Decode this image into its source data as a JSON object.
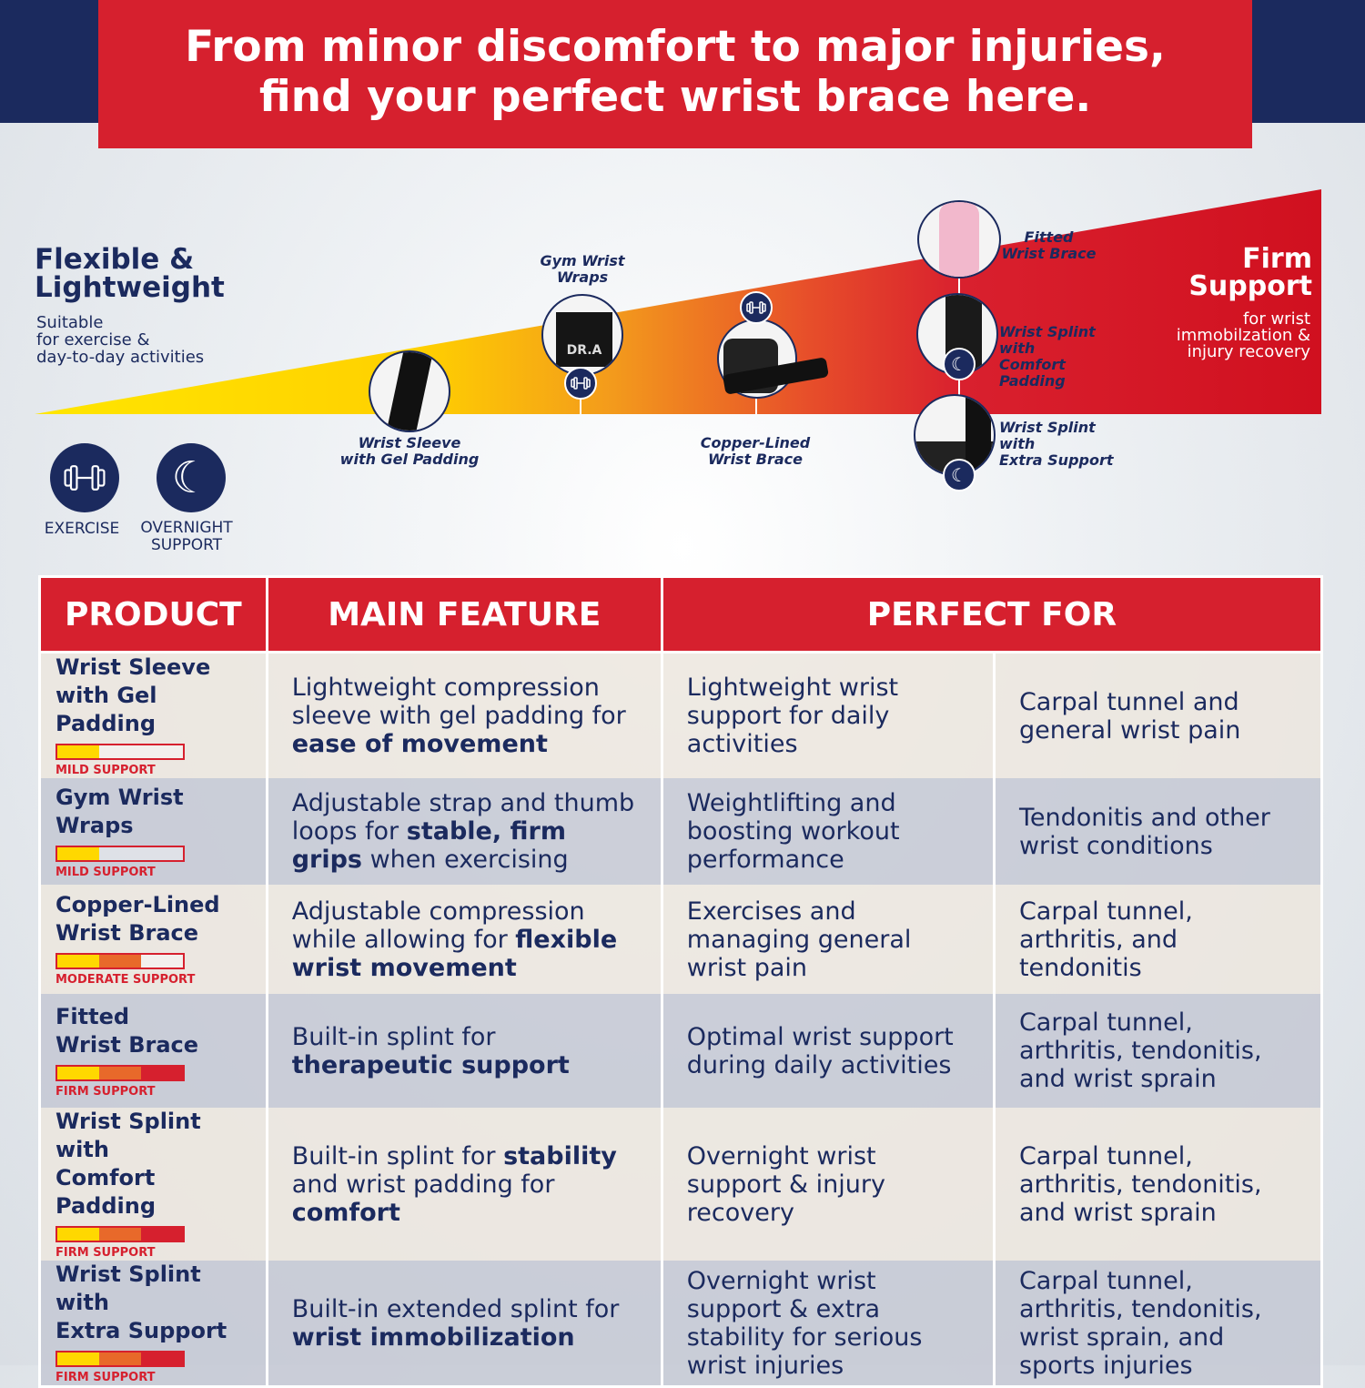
{
  "banner": {
    "line1": "From minor discomfort to major injuries,",
    "line2": "find your perfect wrist brace here."
  },
  "colors": {
    "navy": "#1b2a5e",
    "red": "#d6202e",
    "yellow": "#ffd800",
    "orange": "#e8692a"
  },
  "scale": {
    "left_title_1": "Flexible &",
    "left_title_2": "Lightweight",
    "left_sub_1": "Suitable",
    "left_sub_2": "for exercise &",
    "left_sub_3": "day-to-day activities",
    "right_title_1": "Firm",
    "right_title_2": "Support",
    "right_sub_1": "for wrist",
    "right_sub_2": "immobilzation &",
    "right_sub_3": "injury recovery",
    "products": [
      {
        "l1": "Wrist Sleeve",
        "l2": "with Gel Padding",
        "icon": "none"
      },
      {
        "l1": "Gym Wrist",
        "l2": "Wraps",
        "icon": "dumbbell-icon",
        "logo": "DR.A"
      },
      {
        "l1": "Copper-Lined",
        "l2": "Wrist Brace",
        "icon": "dumbbell-icon"
      },
      {
        "l1": "Fitted",
        "l2": "Wrist Brace",
        "icon": "none"
      },
      {
        "l1": "Wrist Splint with",
        "l2": "Comfort Padding",
        "icon": "moon-icon"
      },
      {
        "l1": "Wrist Splint with",
        "l2": "Extra Support",
        "icon": "moon-icon"
      }
    ]
  },
  "legend": {
    "exercise": "EXERCISE",
    "overnight_1": "OVERNIGHT",
    "overnight_2": "SUPPORT"
  },
  "table": {
    "headers": [
      "PRODUCT",
      "MAIN FEATURE",
      "PERFECT FOR"
    ],
    "rows": [
      {
        "product": [
          "Wrist Sleeve",
          "with Gel Padding"
        ],
        "level": "MILD SUPPORT",
        "level_fraction": 0.33,
        "feature": [
          {
            "t": "Lightweight compression sleeve with gel padding for "
          },
          {
            "t": "ease of movement",
            "b": true
          }
        ],
        "perfect": "Lightweight wrist support for daily activities",
        "conditions": "Carpal tunnel and general wrist pain"
      },
      {
        "product": [
          "Gym Wrist Wraps"
        ],
        "level": "MILD SUPPORT",
        "level_fraction": 0.33,
        "feature": [
          {
            "t": "Adjustable strap and thumb loops for "
          },
          {
            "t": "stable, firm grips",
            "b": true
          },
          {
            "t": " when exercising"
          }
        ],
        "perfect": "Weightlifting and boosting workout performance",
        "conditions": "Tendonitis and other wrist conditions"
      },
      {
        "product": [
          "Copper-Lined",
          "Wrist Brace"
        ],
        "level": "MODERATE SUPPORT",
        "level_fraction": 0.67,
        "feature": [
          {
            "t": "Adjustable compression while allowing for "
          },
          {
            "t": "flexible wrist movement",
            "b": true
          }
        ],
        "perfect": "Exercises and managing general wrist pain",
        "conditions": "Carpal tunnel, arthritis, and tendonitis"
      },
      {
        "product": [
          "Fitted",
          "Wrist Brace"
        ],
        "level": "FIRM SUPPORT",
        "level_fraction": 1.0,
        "feature": [
          {
            "t": "Built-in splint for "
          },
          {
            "t": "therapeutic support",
            "b": true
          }
        ],
        "perfect": "Optimal wrist support during daily activities",
        "conditions": "Carpal tunnel, arthritis, tendonitis, and wrist sprain"
      },
      {
        "product": [
          "Wrist Splint with",
          "Comfort Padding"
        ],
        "level": "FIRM SUPPORT",
        "level_fraction": 1.0,
        "feature": [
          {
            "t": "Built-in splint for "
          },
          {
            "t": "stability",
            "b": true
          },
          {
            "t": " and wrist padding for "
          },
          {
            "t": "comfort",
            "b": true
          }
        ],
        "perfect": "Overnight wrist support & injury recovery",
        "conditions": "Carpal tunnel, arthritis, tendonitis, and wrist sprain"
      },
      {
        "product": [
          "Wrist Splint with",
          "Extra Support"
        ],
        "level": "FIRM SUPPORT",
        "level_fraction": 1.0,
        "feature": [
          {
            "t": "Built-in extended splint for "
          },
          {
            "t": "wrist immobilization",
            "b": true
          }
        ],
        "perfect": "Overnight wrist support & extra stability for serious wrist injuries",
        "conditions": "Carpal tunnel, arthritis, tendonitis, wrist sprain, and sports injuries"
      }
    ]
  }
}
